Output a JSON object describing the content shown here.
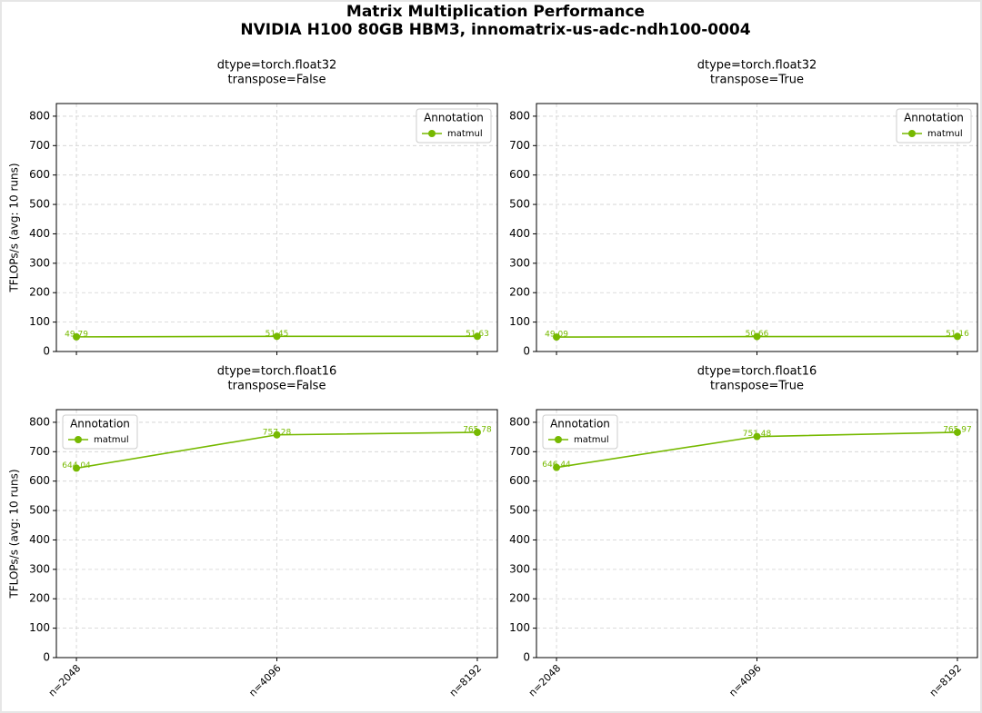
{
  "title": [
    "Matrix Multiplication Performance",
    "NVIDIA H100 80GB HBM3, innomatrix-us-adc-ndh100-0004"
  ],
  "chart_data": [
    {
      "type": "line",
      "title": [
        "dtype=torch.float32",
        "transpose=False"
      ],
      "ylabel": "TFLOPs/s (avg: 10 runs)",
      "categories": [
        null,
        null,
        null
      ],
      "series": [
        {
          "name": "matmul",
          "color": "#76b900",
          "values": [
            49.79,
            51.45,
            51.63
          ]
        }
      ],
      "ylim": [
        0,
        843
      ],
      "yticks": [
        0,
        100,
        200,
        300,
        400,
        500,
        600,
        700,
        800
      ],
      "grid": true,
      "legend": {
        "title": "Annotation",
        "loc": "upper right"
      }
    },
    {
      "type": "line",
      "title": [
        "dtype=torch.float32",
        "transpose=True"
      ],
      "categories": [
        null,
        null,
        null
      ],
      "series": [
        {
          "name": "matmul",
          "color": "#76b900",
          "values": [
            49.09,
            50.66,
            51.16
          ]
        }
      ],
      "ylim": [
        0,
        843
      ],
      "yticks": [
        0,
        100,
        200,
        300,
        400,
        500,
        600,
        700,
        800
      ],
      "grid": true,
      "legend": {
        "title": "Annotation",
        "loc": "upper right"
      }
    },
    {
      "type": "line",
      "title": [
        "dtype=torch.float16",
        "transpose=False"
      ],
      "ylabel": "TFLOPs/s (avg: 10 runs)",
      "categories": [
        "n=2048",
        "n=4096",
        "n=8192"
      ],
      "series": [
        {
          "name": "matmul",
          "color": "#76b900",
          "values": [
            644.04,
            757.28,
            765.78
          ]
        }
      ],
      "ylim": [
        0,
        843
      ],
      "yticks": [
        0,
        100,
        200,
        300,
        400,
        500,
        600,
        700,
        800
      ],
      "grid": true,
      "legend": {
        "title": "Annotation",
        "loc": "upper left"
      }
    },
    {
      "type": "line",
      "title": [
        "dtype=torch.float16",
        "transpose=True"
      ],
      "categories": [
        "n=2048",
        "n=4096",
        "n=8192"
      ],
      "series": [
        {
          "name": "matmul",
          "color": "#76b900",
          "values": [
            646.44,
            751.48,
            765.97
          ]
        }
      ],
      "ylim": [
        0,
        843
      ],
      "yticks": [
        0,
        100,
        200,
        300,
        400,
        500,
        600,
        700,
        800
      ],
      "grid": true,
      "legend": {
        "title": "Annotation",
        "loc": "upper left"
      }
    }
  ]
}
